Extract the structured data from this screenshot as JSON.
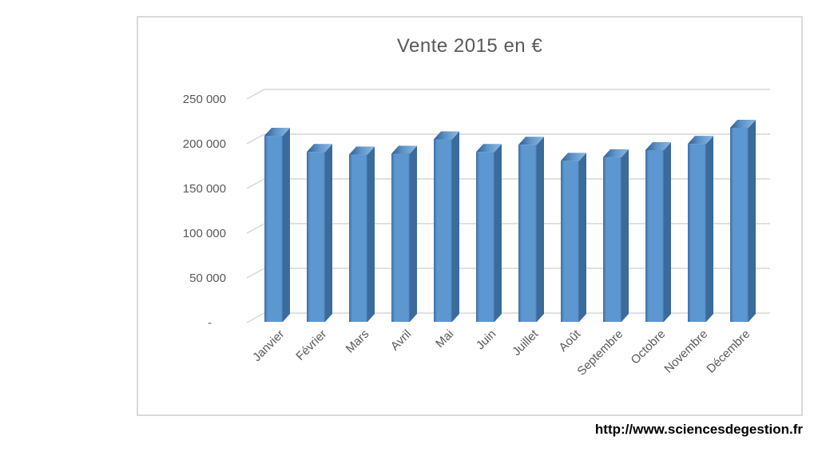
{
  "page": {
    "background": "#ffffff"
  },
  "footer": {
    "url_text": "http://www.sciencesdegestion.fr"
  },
  "chart_data": {
    "type": "bar",
    "style": "3d-column",
    "title": "Vente 2015 en €",
    "xlabel": "",
    "ylabel": "",
    "categories": [
      "Janvier",
      "Février",
      "Mars",
      "Avril",
      "Mai",
      "Juin",
      "Juillet",
      "Août",
      "Septembre",
      "Octobre",
      "Novembre",
      "Décembre"
    ],
    "values": [
      208000,
      190000,
      187000,
      188000,
      204000,
      190000,
      198000,
      180000,
      184000,
      192000,
      199000,
      217000
    ],
    "series_name": "Vente 2015 en €",
    "ylim": [
      0,
      250000
    ],
    "y_tick_values": [
      250000,
      200000,
      150000,
      100000,
      50000,
      0
    ],
    "y_tick_labels": [
      "250 000",
      "200 000",
      "150 000",
      "100 000",
      "50 000",
      "-"
    ],
    "grid": true,
    "legend": false,
    "x_label_rotation_deg": 45,
    "colors": {
      "bar_front": "#5C97D0",
      "bar_front_edge": "#3E6FA3",
      "bar_side": "#3A6B9A",
      "bar_top_light": "#8CB8E4",
      "bar_top_mid": "#5E93C8",
      "bar_top_dark": "#2F5D8A",
      "gridline": "#D6D6D6",
      "axis_text": "#595959",
      "title_text": "#595959",
      "panel_border": "#D9D9D9"
    }
  }
}
